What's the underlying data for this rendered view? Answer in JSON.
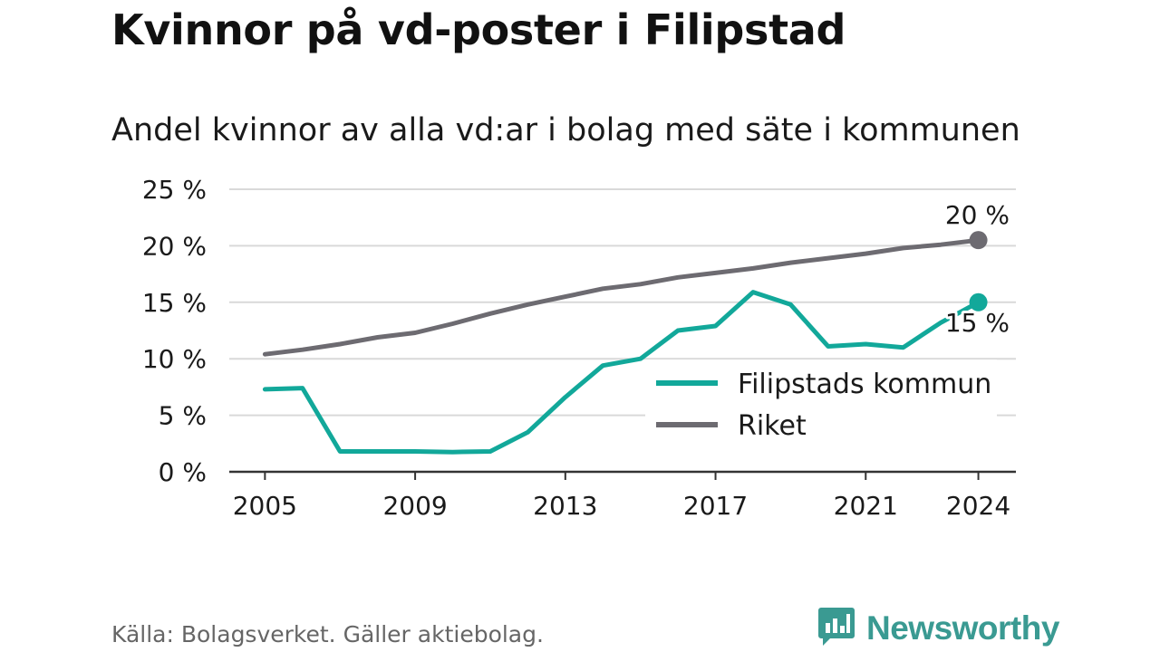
{
  "header": {
    "title": "Kvinnor på vd-poster i Filipstad",
    "subtitle": "Andel kvinnor av alla vd:ar i bolag med säte i kommunen"
  },
  "footer": {
    "source": "Källa: Bolagsverket. Gäller aktiebolag.",
    "brand": "Newsworthy"
  },
  "colors": {
    "filipstad": "#12a89a",
    "riket": "#6d6b71",
    "brand": "#3a9a92",
    "grid": "#d9d9d9",
    "axis": "#333333"
  },
  "icons": {
    "brand_logo": "bar-chart-speech-bubble-icon"
  },
  "chart_data": {
    "type": "line",
    "x": [
      2005,
      2006,
      2007,
      2008,
      2009,
      2010,
      2011,
      2012,
      2013,
      2014,
      2015,
      2016,
      2017,
      2018,
      2019,
      2020,
      2021,
      2022,
      2023,
      2024
    ],
    "x_tick_labels": [
      "2005",
      "2009",
      "2013",
      "2017",
      "2021",
      "2024"
    ],
    "x_ticks": [
      2005,
      2009,
      2013,
      2017,
      2021,
      2024
    ],
    "y_tick_labels": [
      "0 %",
      "5 %",
      "10 %",
      "15 %",
      "20 %",
      "25 %"
    ],
    "y_ticks": [
      0,
      5,
      10,
      15,
      20,
      25
    ],
    "ylim": [
      0,
      25
    ],
    "xlim": [
      2004.05,
      2025.0
    ],
    "grid": true,
    "legend_position": "right",
    "series": [
      {
        "name": "Filipstads kommun",
        "color": "#12a89a",
        "values": [
          7.3,
          7.4,
          1.8,
          1.8,
          1.8,
          1.75,
          1.8,
          3.5,
          6.6,
          9.4,
          10.0,
          12.5,
          12.9,
          15.9,
          14.8,
          11.1,
          11.3,
          11.0,
          13.2,
          15.0
        ],
        "end_label": "15 %"
      },
      {
        "name": "Riket",
        "color": "#6d6b71",
        "values": [
          10.4,
          10.8,
          11.3,
          11.9,
          12.3,
          13.1,
          14.0,
          14.8,
          15.5,
          16.2,
          16.6,
          17.2,
          17.6,
          18.0,
          18.5,
          18.9,
          19.3,
          19.8,
          20.1,
          20.5
        ],
        "end_label": "20 %"
      }
    ]
  }
}
